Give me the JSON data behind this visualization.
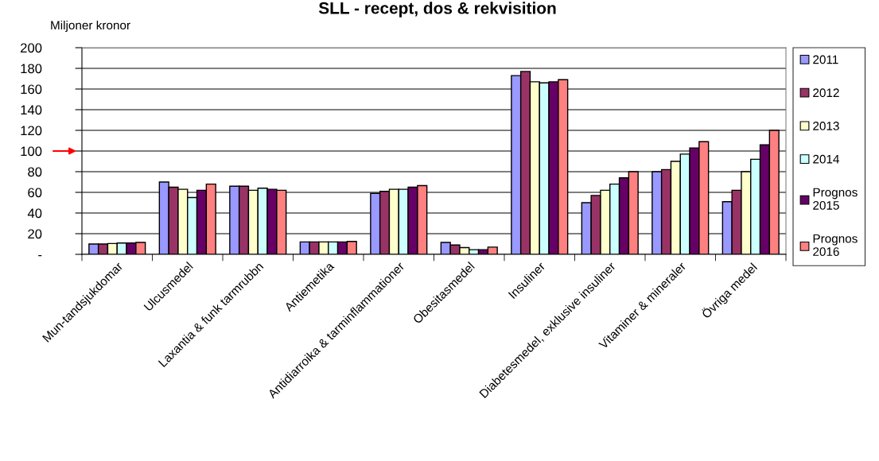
{
  "chart_data": {
    "type": "bar",
    "title": "SLL - recept, dos & rekvisition",
    "ylabel": "Miljoner kronor",
    "categories": [
      "Mun-tandsjukdomar",
      "Ulcusmedel",
      "Laxantia & funk tarmrubbn",
      "Antiemetika",
      "Antidiarroika & tarminflammationer",
      "Obesitasmedel",
      "Insuliner",
      "Diabetesmedel, exklusive insuliner",
      "Vitaminer & mineraler",
      "Övriga medel"
    ],
    "series": [
      {
        "name": "2011",
        "color": "#9999ff",
        "values": [
          10,
          70,
          66,
          12,
          59,
          11.5,
          173,
          50,
          80,
          51
        ]
      },
      {
        "name": "2012",
        "color": "#993366",
        "values": [
          10,
          65,
          66,
          12,
          61,
          9,
          177,
          57,
          82,
          62
        ]
      },
      {
        "name": "2013",
        "color": "#ffffcc",
        "values": [
          10.5,
          63,
          62,
          12,
          63,
          6.5,
          167,
          62,
          90,
          80
        ]
      },
      {
        "name": "2014",
        "color": "#ccffff",
        "values": [
          11,
          55,
          64,
          12,
          63,
          4.5,
          166,
          68,
          97,
          92
        ]
      },
      {
        "name": "Prognos 2015",
        "color": "#660066",
        "values": [
          11,
          62,
          63,
          12,
          65,
          4.5,
          167,
          74,
          103,
          106
        ]
      },
      {
        "name": "Prognos 2016",
        "color": "#ff8080",
        "values": [
          11.5,
          68,
          62,
          12.5,
          66.5,
          7,
          169,
          80,
          109,
          120
        ]
      }
    ],
    "ylim": [
      0,
      200
    ],
    "yticks": [
      {
        "value": 0,
        "label": "-"
      },
      20,
      40,
      60,
      80,
      100,
      120,
      140,
      160,
      180,
      200
    ],
    "grid": "y",
    "legend": "right"
  }
}
